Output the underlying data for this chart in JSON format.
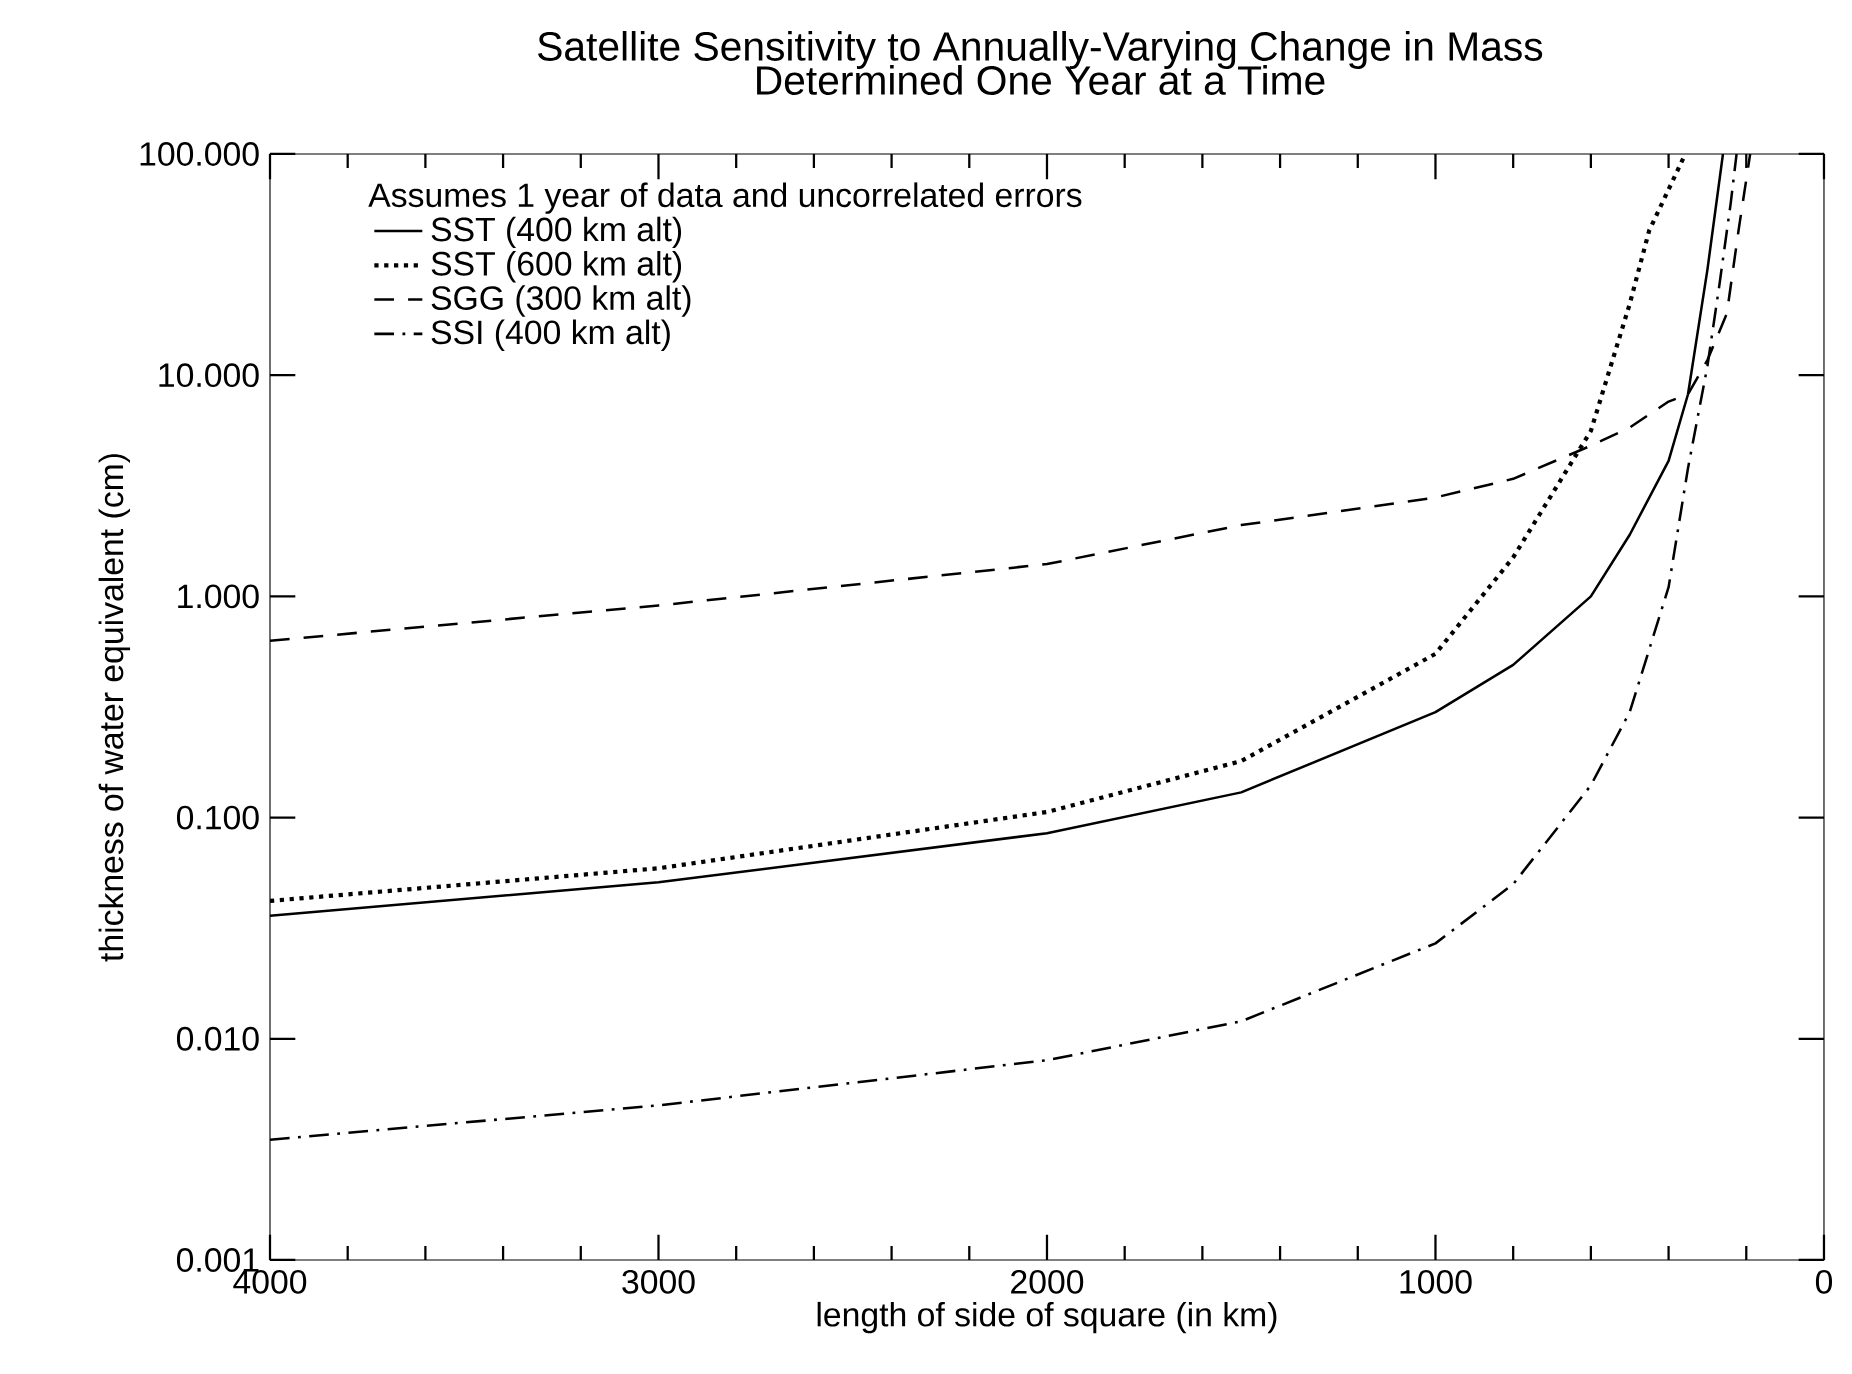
{
  "chart_data": {
    "type": "line",
    "title": "Satellite Sensitivity to Annually-Varying Change in Mass",
    "subtitle": "Determined One Year at a Time",
    "xlabel": "length of side of square (in km)",
    "ylabel": "thickness of water equivalent (cm)",
    "legend_title": "Assumes 1 year of data and uncorrelated errors",
    "log": "y",
    "legend": "top left",
    "grid": false,
    "marker": "none",
    "xlim": [
      4000,
      0
    ],
    "xticks": [
      4000,
      3000,
      2000,
      1000,
      0
    ],
    "ylim": [
      0.001,
      100
    ],
    "yticks": [
      {
        "value": 100,
        "label": "100.000"
      },
      {
        "value": 10,
        "label": "10.000"
      },
      {
        "value": 1,
        "label": "1.000"
      },
      {
        "value": 0.1,
        "label": "0.100"
      },
      {
        "value": 0.01,
        "label": "0.010"
      },
      {
        "value": 0.001,
        "label": "0.001"
      }
    ],
    "series": [
      {
        "name": "SST (400 km alt)",
        "color": "#000000",
        "line_style": "solid",
        "x": [
          4000,
          3000,
          2000,
          1500,
          1000,
          800,
          600,
          500,
          400,
          350,
          300,
          260
        ],
        "values": [
          0.036,
          0.051,
          0.085,
          0.13,
          0.3,
          0.49,
          1.0,
          1.9,
          4.1,
          8.2,
          30,
          100
        ]
      },
      {
        "name": "SST (600 km alt)",
        "color": "#000000",
        "line_style": "dotted",
        "x": [
          4000,
          3000,
          2000,
          1500,
          1000,
          800,
          600,
          500,
          450,
          357
        ],
        "values": [
          0.042,
          0.059,
          0.106,
          0.18,
          0.55,
          1.5,
          5.6,
          21,
          45,
          100
        ]
      },
      {
        "name": "SGG (300 km alt)",
        "color": "#000000",
        "line_style": "dashed",
        "x": [
          4000,
          3000,
          2000,
          1500,
          1000,
          800,
          600,
          500,
          400,
          350,
          300,
          250,
          220,
          190
        ],
        "values": [
          0.63,
          0.91,
          1.4,
          2.1,
          2.8,
          3.4,
          4.8,
          5.8,
          7.6,
          8.2,
          11.7,
          19,
          45,
          100
        ]
      },
      {
        "name": "SSI (400 km alt)",
        "color": "#000000",
        "line_style": "dashdot",
        "x": [
          4000,
          3000,
          2000,
          1500,
          1000,
          800,
          600,
          500,
          400,
          350,
          300,
          270,
          240,
          225
        ],
        "values": [
          0.0035,
          0.005,
          0.008,
          0.012,
          0.027,
          0.05,
          0.14,
          0.3,
          1.1,
          3.8,
          11,
          25,
          60,
          100
        ]
      }
    ]
  }
}
